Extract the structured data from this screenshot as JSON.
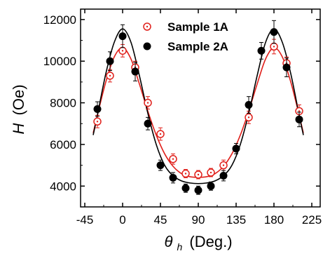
{
  "chart_data": {
    "type": "scatter",
    "xlabel": {
      "symbol": "θ",
      "subscript": "h",
      "unit": "(Deg.)"
    },
    "ylabel": {
      "symbol": "H",
      "unit": "(Oe)"
    },
    "xlim": [
      -50,
      235
    ],
    "ylim": [
      3000,
      12500
    ],
    "xticks": [
      -45,
      0,
      45,
      90,
      135,
      180,
      225
    ],
    "yticks": [
      4000,
      6000,
      8000,
      10000,
      12000
    ],
    "grid": false,
    "legend_position": "top-right",
    "series": [
      {
        "name": "Sample 1A",
        "marker": "open-circle",
        "color": "#e0201b",
        "x": [
          -30,
          -15,
          0,
          15,
          30,
          45,
          60,
          75,
          90,
          105,
          120,
          150,
          180,
          195,
          210
        ],
        "y": [
          7100,
          9300,
          10500,
          9700,
          8000,
          6500,
          5300,
          4600,
          4550,
          4650,
          5000,
          7300,
          10700,
          9900,
          7600
        ],
        "errors": [
          300,
          300,
          300,
          300,
          300,
          300,
          250,
          200,
          200,
          200,
          250,
          300,
          350,
          300,
          300
        ]
      },
      {
        "name": "Sample 2A",
        "marker": "filled-circle",
        "color": "#000000",
        "x": [
          -30,
          -15,
          0,
          15,
          30,
          45,
          60,
          75,
          90,
          105,
          120,
          135,
          150,
          165,
          180,
          195,
          210
        ],
        "y": [
          7700,
          10000,
          11200,
          9500,
          7000,
          5000,
          4400,
          3900,
          3800,
          4000,
          4500,
          5800,
          7900,
          10500,
          11400,
          9700,
          7200
        ],
        "errors": [
          350,
          450,
          550,
          450,
          300,
          250,
          250,
          200,
          200,
          200,
          250,
          250,
          400,
          400,
          550,
          450,
          350
        ]
      }
    ],
    "fits": [
      {
        "series": "Sample 1A",
        "color": "#e0201b",
        "x": [
          -35,
          -30,
          -20,
          -10,
          0,
          10,
          20,
          30,
          40,
          50,
          60,
          70,
          80,
          90,
          100,
          110,
          120,
          130,
          140,
          150,
          160,
          170,
          180,
          190,
          200,
          210,
          215
        ],
        "y": [
          6550,
          7400,
          9000,
          10200,
          10650,
          10100,
          8900,
          7600,
          6450,
          5550,
          4950,
          4600,
          4450,
          4420,
          4450,
          4600,
          4950,
          5550,
          6450,
          7600,
          8900,
          10100,
          10650,
          10200,
          9000,
          7400,
          6550
        ]
      },
      {
        "series": "Sample 2A",
        "color": "#000000",
        "x": [
          -35,
          -30,
          -20,
          -10,
          0,
          10,
          20,
          30,
          40,
          50,
          60,
          70,
          80,
          90,
          100,
          110,
          120,
          130,
          140,
          150,
          160,
          170,
          180,
          190,
          200,
          210,
          215
        ],
        "y": [
          6450,
          7400,
          9400,
          10900,
          11550,
          10900,
          9300,
          7500,
          6000,
          5000,
          4500,
          4250,
          4150,
          4120,
          4150,
          4250,
          4500,
          5000,
          6000,
          7500,
          9300,
          10900,
          11550,
          10900,
          9400,
          7400,
          6450
        ]
      }
    ]
  }
}
